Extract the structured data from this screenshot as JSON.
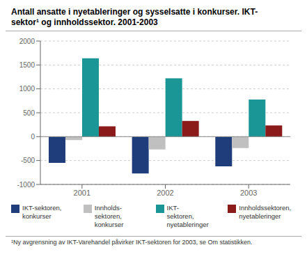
{
  "chart_data": {
    "type": "bar",
    "title": "Antall ansatte i nyetableringer og sysselsatte i konkurser. IKT-\nsektor¹ og innholdssektor. 2001-2003",
    "annotations": [
      "¹Ny avgrensning av IKT-Varehandel påvirker IKT-sektoren for 2003, se Om statistikken."
    ],
    "categories": [
      "2001",
      "2002",
      "2003"
    ],
    "series": [
      {
        "name": "IKT-sektoren,\nkonkurser",
        "color": "#1f3d7a",
        "values": [
          -550,
          -770,
          -620
        ]
      },
      {
        "name": "Innholds-\nsektoren,\nkonkurser",
        "color": "#c0c0c0",
        "values": [
          -70,
          -270,
          -240
        ]
      },
      {
        "name": "IKT-\nsektoren,\nnyetableringer",
        "color": "#1a9696",
        "values": [
          1640,
          1220,
          775
        ]
      },
      {
        "name": "Innholdssektoren,\nnyetableringer",
        "color": "#8b1a1a",
        "values": [
          215,
          330,
          235
        ]
      }
    ],
    "ylim": [
      -1000,
      2000
    ],
    "yticks": [
      -1000,
      -500,
      0,
      500,
      1000,
      1500,
      2000
    ],
    "grid": true,
    "legend": "bottom"
  }
}
